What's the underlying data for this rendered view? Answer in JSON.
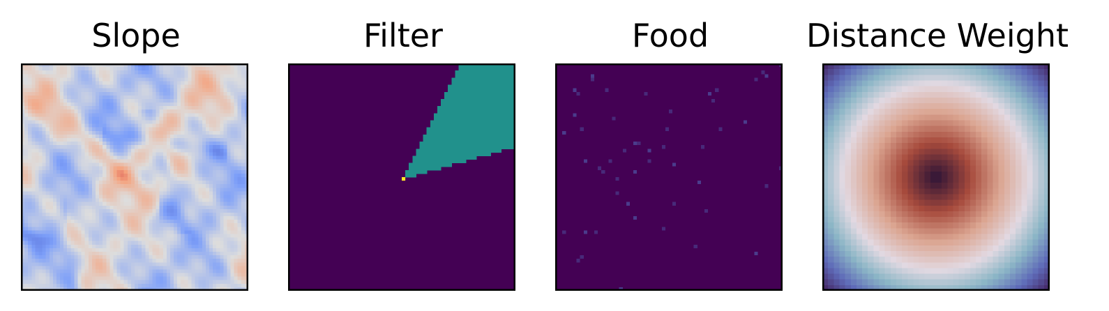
{
  "chart_data": [
    {
      "type": "heatmap",
      "title": "Slope",
      "xlabel": "",
      "ylabel": "",
      "grid": false,
      "ticks": false,
      "colormap": "coolwarm",
      "colormap_stops": [
        "#3b4cc0",
        "#7d9ff9",
        "#dddddd",
        "#f5a27d",
        "#b40426"
      ],
      "grid_size": 64,
      "value_range": [
        0,
        1
      ],
      "description_of_values": "continuous terrain slope field, mostly light blue with scattered salmon ridges and darker blue channels"
    },
    {
      "type": "heatmap",
      "title": "Filter",
      "xlabel": "",
      "ylabel": "",
      "grid": false,
      "ticks": false,
      "colormap": "viridis",
      "colors": {
        "background": "#440154",
        "wedge": "#21918c",
        "origin": "#fde725"
      },
      "grid_size": 64,
      "origin_cell": [
        32,
        32
      ],
      "wedge_angle_range_deg": [
        16,
        64
      ]
    },
    {
      "type": "heatmap",
      "title": "Food",
      "xlabel": "",
      "ylabel": "",
      "grid": false,
      "ticks": false,
      "colormap": "viridis",
      "colors": {
        "background": "#440154",
        "low": "#482a7a",
        "mid": "#4b3c8c"
      },
      "grid_size": 64,
      "food_cells": [
        [
          10,
          3
        ],
        [
          10,
          4
        ],
        [
          58,
          2
        ],
        [
          59,
          3
        ],
        [
          56,
          4
        ],
        [
          63,
          0
        ],
        [
          5,
          7
        ],
        [
          14,
          7
        ],
        [
          25,
          8
        ],
        [
          43,
          8
        ],
        [
          45,
          7
        ],
        [
          6,
          8
        ],
        [
          5,
          14
        ],
        [
          44,
          10
        ],
        [
          16,
          15
        ],
        [
          53,
          16
        ],
        [
          32,
          13
        ],
        [
          46,
          18
        ],
        [
          2,
          19
        ],
        [
          7,
          18
        ],
        [
          31,
          18
        ],
        [
          22,
          22
        ],
        [
          23,
          22
        ],
        [
          19,
          24
        ],
        [
          26,
          24
        ],
        [
          30,
          23
        ],
        [
          41,
          23
        ],
        [
          8,
          27
        ],
        [
          15,
          27
        ],
        [
          26,
          27
        ],
        [
          33,
          28
        ],
        [
          12,
          29
        ],
        [
          13,
          30
        ],
        [
          22,
          30
        ],
        [
          63,
          29
        ],
        [
          17,
          32
        ],
        [
          40,
          33
        ],
        [
          59,
          34
        ],
        [
          17,
          36
        ],
        [
          20,
          39
        ],
        [
          33,
          39
        ],
        [
          42,
          41
        ],
        [
          22,
          43
        ],
        [
          30,
          46
        ],
        [
          2,
          47
        ],
        [
          8,
          47
        ],
        [
          11,
          47
        ],
        [
          39,
          51
        ],
        [
          56,
          53
        ],
        [
          7,
          54
        ],
        [
          6,
          55
        ],
        [
          18,
          63
        ]
      ]
    },
    {
      "type": "heatmap",
      "title": "Distance Weight",
      "xlabel": "",
      "ylabel": "",
      "grid": false,
      "ticks": false,
      "colormap": "twilight",
      "colormap_stops": [
        "#2f1436",
        "#a64a3c",
        "#dba591",
        "#e2d9e2",
        "#8cb6c6",
        "#5e6ab8",
        "#42205d"
      ],
      "grid_size": 40,
      "radial_center": [
        0.5,
        0.5
      ],
      "ring_peak_value": 0.58
    }
  ]
}
